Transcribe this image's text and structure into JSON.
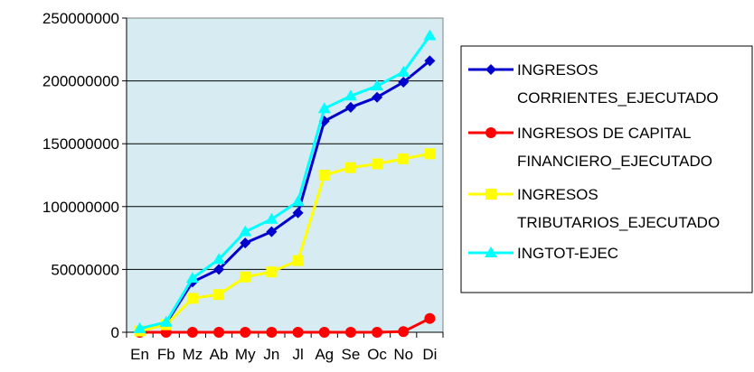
{
  "chart_data": {
    "type": "line",
    "title": "",
    "xlabel": "",
    "ylabel": "",
    "categories": [
      "En",
      "Fb",
      "Mz",
      "Ab",
      "My",
      "Jn",
      "Jl",
      "Ag",
      "Se",
      "Oc",
      "No",
      "Di"
    ],
    "ylim": [
      0,
      250000000
    ],
    "yticks": [
      0,
      50000000,
      100000000,
      150000000,
      200000000,
      250000000
    ],
    "ytick_labels": [
      "0",
      "50000000",
      "100000000",
      "150000000",
      "200000000",
      "250000000"
    ],
    "grid": true,
    "legend": "right",
    "plot_background": "#D6ECF2",
    "series": [
      {
        "name": "INGRESOS CORRIENTES_EJECUTADO",
        "name_lines": [
          "INGRESOS",
          "CORRIENTES_EJECUTADO"
        ],
        "color": "#0000CC",
        "marker": "diamond",
        "values": [
          2000000,
          7000000,
          40000000,
          50000000,
          71000000,
          80000000,
          95000000,
          168000000,
          179000000,
          187000000,
          199000000,
          216000000
        ]
      },
      {
        "name": "INGRESOS DE CAPITAL FINANCIERO_EJECUTADO",
        "name_lines": [
          "INGRESOS DE CAPITAL",
          "FINANCIERO_EJECUTADO"
        ],
        "color": "#FF0000",
        "marker": "circle",
        "values": [
          0,
          0,
          0,
          0,
          0,
          0,
          0,
          0,
          0,
          0,
          500000,
          11000000
        ]
      },
      {
        "name": "INGRESOS TRIBUTARIOS_EJECUTADO",
        "name_lines": [
          "INGRESOS",
          "TRIBUTARIOS_EJECUTADO"
        ],
        "color": "#FFFF00",
        "marker": "square",
        "values": [
          1000000,
          6000000,
          27000000,
          30000000,
          44000000,
          48000000,
          57000000,
          125000000,
          131000000,
          134000000,
          138000000,
          142000000
        ]
      },
      {
        "name": "INGTOT-EJEC",
        "name_lines": [
          "INGTOT-EJEC"
        ],
        "color": "#00FFFF",
        "marker": "triangle",
        "values": [
          3000000,
          8000000,
          43000000,
          58000000,
          80000000,
          90000000,
          104000000,
          178000000,
          188000000,
          196000000,
          207000000,
          236000000
        ]
      }
    ]
  }
}
